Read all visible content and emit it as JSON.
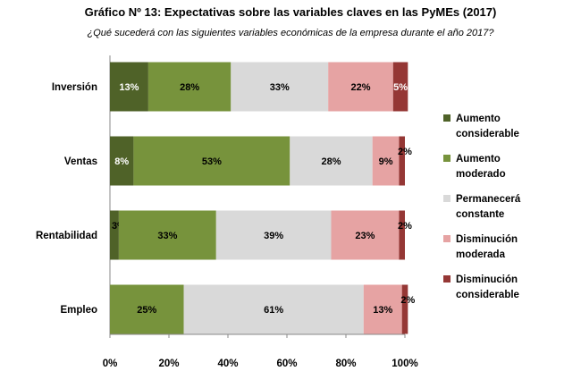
{
  "chart_data": {
    "type": "bar",
    "orientation": "horizontal",
    "stacked": "percent",
    "title": "Gráfico Nº 13: Expectativas sobre las variables claves en las PyMEs (2017)",
    "subtitle": "¿Qué sucederá con las siguientes variables económicas de la empresa durante el año 2017?",
    "categories": [
      "Inversión",
      "Ventas",
      "Rentabilidad",
      "Empleo"
    ],
    "xlim": [
      0,
      100
    ],
    "xticks": [
      "0%",
      "20%",
      "40%",
      "60%",
      "80%",
      "100%"
    ],
    "grid": false,
    "legend_position": "right",
    "series": [
      {
        "name": "Aumento considerable",
        "color": "#4f6228",
        "values": [
          13,
          8,
          3,
          0
        ],
        "labels": [
          "13%",
          "8%",
          "3%",
          ""
        ]
      },
      {
        "name": "Aumento moderado",
        "color": "#77933c",
        "values": [
          28,
          53,
          33,
          25
        ],
        "labels": [
          "28%",
          "53%",
          "33%",
          "25%"
        ]
      },
      {
        "name": "Permanecerá constante",
        "color": "#d9d9d9",
        "values": [
          33,
          28,
          39,
          61
        ],
        "labels": [
          "33%",
          "28%",
          "39%",
          "61%"
        ]
      },
      {
        "name": "Disminución moderada",
        "color": "#e6a3a3",
        "values": [
          22,
          9,
          23,
          13
        ],
        "labels": [
          "22%",
          "9%",
          "23%",
          "13%"
        ]
      },
      {
        "name": "Disminución considerable",
        "color": "#953735",
        "values": [
          5,
          2,
          2,
          2
        ],
        "labels": [
          "5%",
          "2%",
          "2%",
          "2%"
        ]
      }
    ]
  }
}
